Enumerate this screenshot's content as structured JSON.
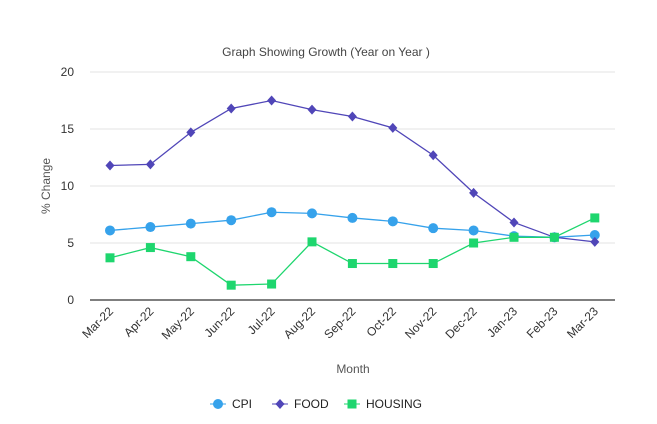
{
  "chart_data": {
    "type": "line",
    "title": "Graph Showing Growth (Year on Year )",
    "xlabel": "Month",
    "ylabel": "% Change",
    "ylim": [
      0,
      20
    ],
    "yticks": [
      "0",
      "5",
      "10",
      "15",
      "20"
    ],
    "grid": true,
    "legend": "bottom",
    "categories": [
      "Mar-22",
      "Apr-22",
      "May-22",
      "Jun-22",
      "Jul-22",
      "Aug-22",
      "Sep-22",
      "Oct-22",
      "Nov-22",
      "Dec-22",
      "Jan-23",
      "Feb-23",
      "Mar-23"
    ],
    "series": [
      {
        "name": "CPI",
        "color": "#36a2eb",
        "marker": "circle",
        "values": [
          6.1,
          6.4,
          6.7,
          7.0,
          7.7,
          7.6,
          7.2,
          6.9,
          6.3,
          6.1,
          5.6,
          5.5,
          5.7
        ]
      },
      {
        "name": "FOOD",
        "color": "#5046b8",
        "marker": "diamond",
        "values": [
          11.8,
          11.9,
          14.7,
          16.8,
          17.5,
          16.7,
          16.1,
          15.1,
          12.7,
          9.4,
          6.8,
          5.5,
          5.1
        ]
      },
      {
        "name": "HOUSING",
        "color": "#1ed66e",
        "marker": "square",
        "values": [
          3.7,
          4.6,
          3.8,
          1.3,
          1.4,
          5.1,
          3.2,
          3.2,
          3.2,
          5.0,
          5.5,
          5.5,
          7.2
        ]
      }
    ]
  }
}
